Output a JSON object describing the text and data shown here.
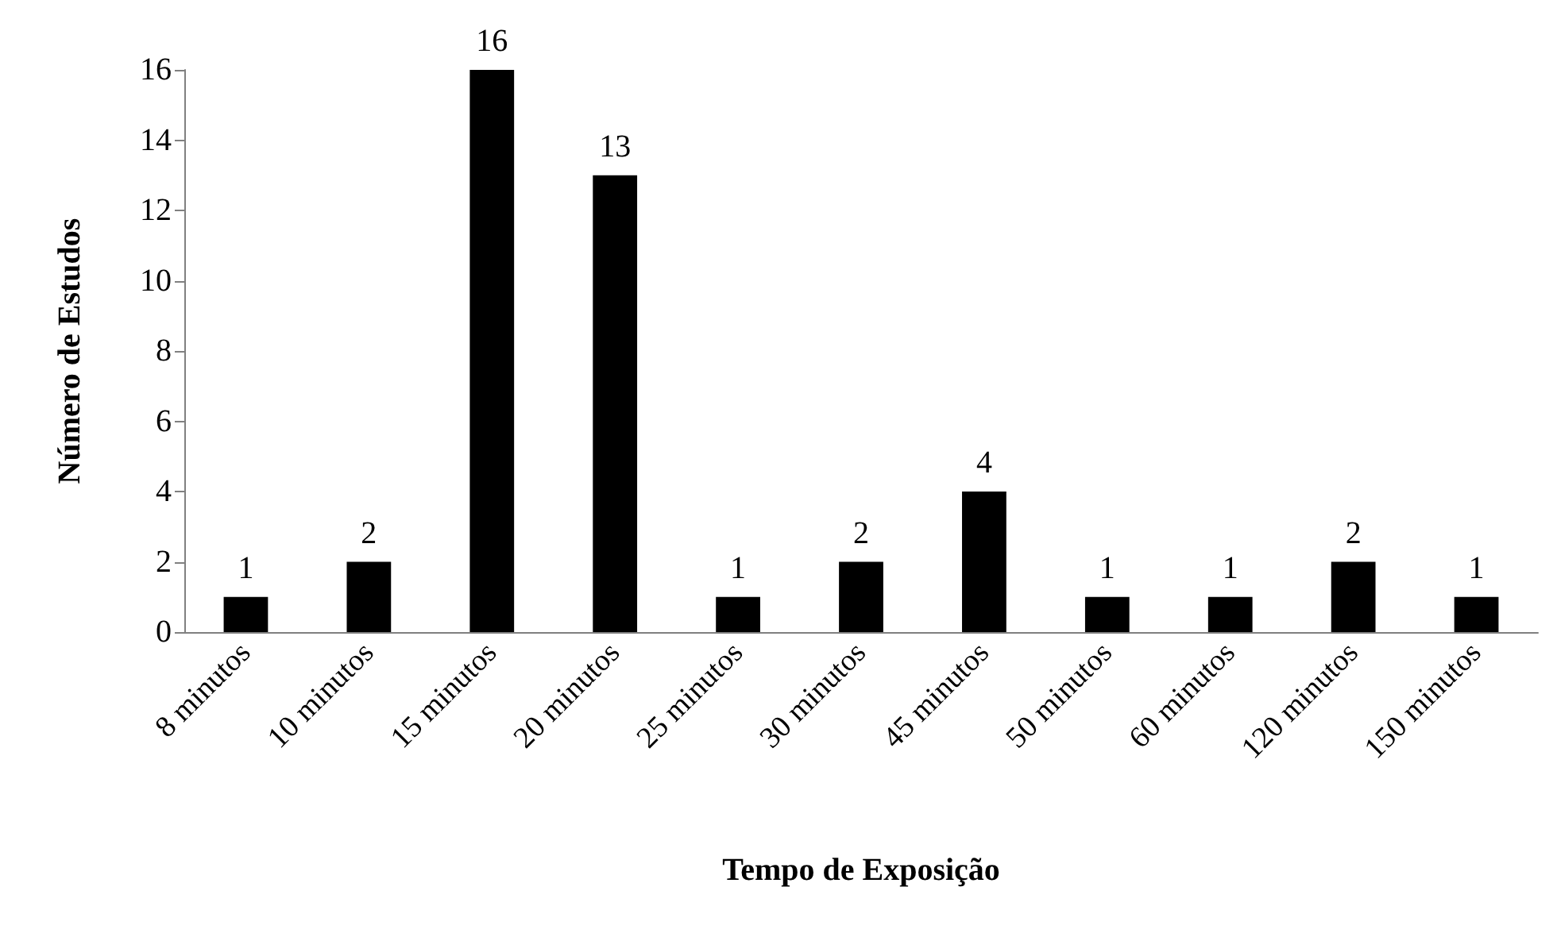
{
  "chart_data": {
    "type": "bar",
    "xlabel": "Tempo de Exposição",
    "ylabel": "Número de Estudos",
    "categories": [
      "8 minutos",
      "10 minutos",
      "15 minutos",
      "20 minutos",
      "25 minutos",
      "30 minutos",
      "45 minutos",
      "50 minutos",
      "60 minutos",
      "120 minutos",
      "150 minutos"
    ],
    "values": [
      1,
      2,
      16,
      13,
      1,
      2,
      4,
      1,
      1,
      2,
      1
    ],
    "color": "#000000",
    "ylim": [
      0,
      16
    ],
    "yticks": [
      0,
      2,
      4,
      6,
      8,
      10,
      12,
      14,
      16
    ],
    "data_labels": true,
    "grid": false
  }
}
